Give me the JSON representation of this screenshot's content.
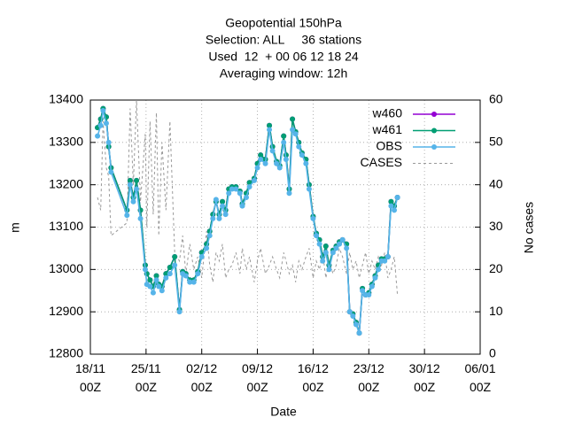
{
  "chart_data": {
    "type": "line",
    "title": "Geopotential 150hPa",
    "subtitle": [
      "Selection: ALL     36 stations",
      "Used  12  + 00 06 12 18 24",
      "Averaging window: 12h"
    ],
    "xlabel": "Date",
    "ylabel": "m",
    "y2label": "No cases",
    "x": [
      0.9,
      1.3,
      1.6,
      2.0,
      2.3,
      2.6,
      4.6,
      5.0,
      5.4,
      5.8,
      6.3,
      6.9,
      7.1,
      7.5,
      7.9,
      8.3,
      8.6,
      9.0,
      9.5,
      10.0,
      10.6,
      11.2,
      11.6,
      12.0,
      12.5,
      13.0,
      13.5,
      14.0,
      14.6,
      15.0,
      15.4,
      15.8,
      16.2,
      16.6,
      17.0,
      17.4,
      17.8,
      18.3,
      18.8,
      19.1,
      19.6,
      20.0,
      20.6,
      21.0,
      21.4,
      22.0,
      22.5,
      22.9,
      23.4,
      23.8,
      24.3,
      24.6,
      25.0,
      25.4,
      25.8,
      26.2,
      26.6,
      27.1,
      27.5,
      28.0,
      28.4,
      28.8,
      29.2,
      29.6,
      30.0,
      30.5,
      30.9,
      31.3,
      31.7,
      32.2,
      32.6,
      33.0,
      33.4,
      33.8,
      34.2,
      34.6,
      35.0,
      35.4,
      35.8,
      36.2,
      36.6,
      37.0,
      37.4,
      37.8,
      38.2,
      38.6
    ],
    "series": [
      {
        "name": "w460",
        "color": "#9400d3",
        "values": [
          13335,
          13355,
          13380,
          13360,
          13290,
          13240,
          13140,
          13210,
          13170,
          13210,
          13140,
          13010,
          12990,
          12975,
          12960,
          12985,
          12965,
          12960,
          12990,
          13005,
          13030,
          12905,
          12995,
          12990,
          12975,
          12975,
          12995,
          13040,
          13060,
          13090,
          13130,
          13160,
          13130,
          13160,
          13140,
          13190,
          13195,
          13195,
          13185,
          13155,
          13180,
          13205,
          13215,
          13250,
          13270,
          13260,
          13340,
          13290,
          13255,
          13245,
          13315,
          13270,
          13190,
          13355,
          13325,
          13300,
          13275,
          13260,
          13200,
          13125,
          13085,
          13070,
          13030,
          13055,
          13010,
          13045,
          13055,
          13065,
          13070,
          13060,
          12900,
          12895,
          12875,
          12850,
          12955,
          12940,
          12945,
          12965,
          12985,
          13010,
          13025,
          13025,
          13030,
          13160,
          13150,
          13170
        ]
      },
      {
        "name": "w461",
        "color": "#009e73",
        "values": [
          13335,
          13355,
          13380,
          13360,
          13290,
          13240,
          13140,
          13210,
          13170,
          13210,
          13140,
          13010,
          12990,
          12975,
          12960,
          12985,
          12965,
          12960,
          12990,
          13005,
          13030,
          12905,
          12995,
          12990,
          12975,
          12975,
          12995,
          13040,
          13060,
          13090,
          13130,
          13160,
          13130,
          13160,
          13140,
          13190,
          13195,
          13195,
          13185,
          13155,
          13180,
          13205,
          13215,
          13250,
          13270,
          13260,
          13340,
          13290,
          13255,
          13245,
          13315,
          13270,
          13190,
          13355,
          13325,
          13300,
          13275,
          13260,
          13200,
          13125,
          13085,
          13070,
          13030,
          13055,
          13010,
          13045,
          13055,
          13065,
          13070,
          13060,
          12900,
          12895,
          12875,
          12850,
          12955,
          12940,
          12945,
          12965,
          12985,
          13010,
          13025,
          13025,
          13030,
          13160,
          13150,
          13170
        ]
      },
      {
        "name": "OBS",
        "color": "#56b4e9",
        "values": [
          13315,
          13340,
          13375,
          13345,
          13300,
          13230,
          13128,
          13200,
          13160,
          13190,
          13120,
          13000,
          12965,
          12960,
          12945,
          12975,
          12960,
          12950,
          12980,
          12990,
          13010,
          12900,
          12990,
          12985,
          12970,
          12970,
          12990,
          13030,
          13050,
          13080,
          13120,
          13165,
          13120,
          13150,
          13130,
          13180,
          13190,
          13190,
          13180,
          13150,
          13170,
          13195,
          13210,
          13240,
          13260,
          13250,
          13330,
          13280,
          13250,
          13240,
          13300,
          13260,
          13180,
          13330,
          13320,
          13290,
          13270,
          13250,
          13190,
          13120,
          13080,
          13060,
          13020,
          13040,
          13000,
          13040,
          13050,
          13060,
          13070,
          13050,
          12900,
          12890,
          12870,
          12850,
          12950,
          12940,
          12940,
          12960,
          12980,
          13000,
          13020,
          13020,
          13030,
          13150,
          13140,
          13170
        ]
      },
      {
        "name": "CASES",
        "color": "#999999",
        "axis": "y2",
        "values": [
          37,
          34,
          55,
          44,
          42,
          28,
          31,
          58,
          40,
          60,
          36,
          52,
          30,
          55,
          33,
          57,
          28,
          50,
          34,
          55,
          24,
          22,
          28,
          19,
          26,
          20,
          23,
          18,
          29,
          21,
          17,
          24,
          22,
          26,
          18,
          20,
          21,
          24,
          19,
          25,
          20,
          23,
          17,
          22,
          25,
          19,
          21,
          23,
          20,
          18,
          24,
          22,
          19,
          21,
          17,
          22,
          20,
          23,
          25,
          18,
          22,
          20,
          24,
          18,
          22,
          19,
          21,
          25,
          23,
          19,
          24,
          20,
          22,
          18,
          21,
          24,
          19,
          22,
          20,
          23,
          21,
          24,
          18,
          20,
          23,
          14
        ]
      }
    ],
    "xlim": [
      0,
      49
    ],
    "xticks": [
      {
        "value": 0,
        "label": "18/11 00Z"
      },
      {
        "value": 7,
        "label": "25/11 00Z"
      },
      {
        "value": 14,
        "label": "02/12 00Z"
      },
      {
        "value": 21,
        "label": "09/12 00Z"
      },
      {
        "value": 28,
        "label": "16/12 00Z"
      },
      {
        "value": 35,
        "label": "23/12 00Z"
      },
      {
        "value": 42,
        "label": "30/12 00Z"
      },
      {
        "value": 49,
        "label": "06/01 00Z"
      }
    ],
    "ylim": [
      12800,
      13400
    ],
    "yticks": [
      12800,
      12900,
      13000,
      13100,
      13200,
      13300,
      13400
    ],
    "y2lim": [
      0,
      60
    ],
    "y2ticks": [
      0,
      10,
      20,
      30,
      40,
      50,
      60
    ],
    "grid": true,
    "legend": "top-right"
  }
}
